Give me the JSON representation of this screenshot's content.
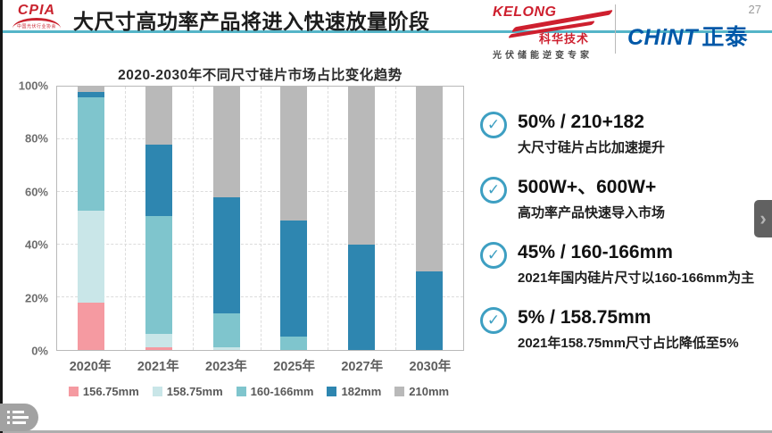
{
  "header": {
    "cpia": {
      "acronym": "CPIA",
      "subtext": "中国光伏行业协会"
    },
    "title": "大尺寸高功率产品将进入快速放量阶段",
    "kelong": {
      "wordmark": "KELONG",
      "cn_name": "科华技术",
      "tagline": "光伏储能逆变专家"
    },
    "chint": {
      "wordmark_en": "CHiNT",
      "wordmark_cn": "正泰"
    },
    "page_number": "27"
  },
  "chart_data": {
    "type": "bar",
    "stacked": true,
    "title": "2020-2030年不同尺寸硅片市场占比变化趋势",
    "categories": [
      "2020年",
      "2021年",
      "2023年",
      "2025年",
      "2027年",
      "2030年"
    ],
    "series": [
      {
        "name": "156.75mm",
        "color": "#f59aa1",
        "values": [
          18,
          1,
          0,
          0,
          0,
          0
        ]
      },
      {
        "name": "158.75mm",
        "color": "#c9e6e8",
        "values": [
          35,
          5,
          1,
          0,
          0,
          0
        ]
      },
      {
        "name": "160-166mm",
        "color": "#7fc5cd",
        "values": [
          43,
          45,
          13,
          5,
          0,
          0
        ]
      },
      {
        "name": "182mm",
        "color": "#2e86b0",
        "values": [
          2,
          27,
          44,
          44,
          40,
          30
        ]
      },
      {
        "name": "210mm",
        "color": "#b9b9b9",
        "values": [
          2,
          22,
          42,
          51,
          60,
          70
        ]
      }
    ],
    "xlabel": "",
    "ylabel": "",
    "ylim": [
      0,
      100
    ],
    "y_ticks_pct": [
      0,
      20,
      40,
      60,
      80,
      100
    ],
    "y_tick_labels": [
      "0%",
      "20%",
      "40%",
      "60%",
      "80%",
      "100%"
    ],
    "grid": true,
    "legend_position": "bottom"
  },
  "bullets": [
    {
      "headline": "50% / 210+182",
      "subtext": "大尺寸硅片占比加速提升"
    },
    {
      "headline": "500W+、600W+",
      "subtext": "高功率产品快速导入市场"
    },
    {
      "headline": "45% / 160-166mm",
      "subtext": "2021年国内硅片尺寸以160-166mm为主"
    },
    {
      "headline": "5% / 158.75mm",
      "subtext": "2021年158.75mm尺寸占比降低至5%"
    }
  ],
  "icons": {
    "check": "✓",
    "chevron_right": "›"
  },
  "colors": {
    "accent_teal": "#55b5c8",
    "check_icon": "#3d9fc2",
    "chint_blue": "#0058a8",
    "kelong_red": "#ce1f2e",
    "cpia_red": "#c9232e"
  }
}
